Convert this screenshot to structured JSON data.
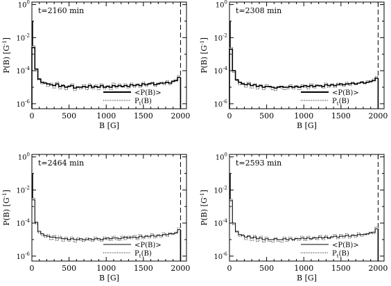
{
  "figure": {
    "layout": "2x2 grid of panels",
    "colors": {
      "axes": "#000000",
      "background": "#ffffff",
      "mean_line": "#000000",
      "pt_line": "#000000",
      "cutoff_line": "#000000"
    }
  },
  "chart_data": [
    {
      "type": "line",
      "title": "t=2160 min",
      "xlabel": "B [G]",
      "ylabel_parts": {
        "main": "P(B) [G",
        "sup": "-1",
        "end": "]"
      },
      "xlim": [
        0,
        2080
      ],
      "ylim_log10": [
        -6.3,
        0.15
      ],
      "y_scale": "log",
      "x_ticks": [
        "0",
        "500",
        "1000",
        "1500",
        "2000"
      ],
      "y_ticks": [
        {
          "base": "10",
          "exp": "0"
        },
        {
          "base": "10",
          "exp": "-2"
        },
        {
          "base": "10",
          "exp": "-4"
        },
        {
          "base": "10",
          "exp": "-6"
        }
      ],
      "y_tick_values_log10": [
        0,
        -2,
        -4,
        -6
      ],
      "legend": {
        "placement": "bottom-right",
        "entries": [
          {
            "label": "<P(B)>",
            "style": "solid"
          },
          {
            "label_main": "P",
            "label_sub": "t",
            "label_end": "(B)",
            "style": "dotted"
          }
        ]
      },
      "cutoff_x": 2000,
      "bin_width": 40,
      "series": [
        {
          "name": "<P(B)>",
          "style": "solid",
          "bold": true,
          "log10_values": [
            -2.6,
            -3.9,
            -4.5,
            -4.7,
            -4.75,
            -4.8,
            -4.85,
            -4.9,
            -4.8,
            -4.95,
            -4.9,
            -5.0,
            -4.95,
            -4.9,
            -5.05,
            -5.0,
            -5.0,
            -4.95,
            -5.0,
            -4.9,
            -5.0,
            -4.95,
            -5.0,
            -4.9,
            -5.0,
            -4.95,
            -5.0,
            -4.9,
            -4.95,
            -4.9,
            -4.95,
            -4.9,
            -4.95,
            -4.85,
            -4.9,
            -4.85,
            -4.9,
            -4.8,
            -4.85,
            -4.8,
            -4.75,
            -4.85,
            -4.8,
            -4.75,
            -4.75,
            -4.7,
            -4.75,
            -4.65,
            -4.6,
            -4.4
          ]
        },
        {
          "name": "Pt(B)",
          "style": "dotted",
          "bold": false,
          "log10_values": [
            -2.5,
            -4.0,
            -4.55,
            -4.8,
            -4.7,
            -4.95,
            -4.75,
            -5.05,
            -4.7,
            -5.1,
            -4.85,
            -5.15,
            -4.9,
            -4.8,
            -5.2,
            -4.95,
            -5.1,
            -4.85,
            -5.15,
            -4.8,
            -5.1,
            -4.85,
            -5.15,
            -4.8,
            -5.1,
            -4.9,
            -5.15,
            -4.75,
            -5.05,
            -4.8,
            -5.0,
            -4.8,
            -5.05,
            -4.75,
            -5.0,
            -4.8,
            -5.0,
            -4.7,
            -4.95,
            -4.75,
            -4.7,
            -4.95,
            -4.75,
            -4.7,
            -4.85,
            -4.6,
            -4.85,
            -4.6,
            -4.55,
            -4.3
          ]
        }
      ]
    },
    {
      "type": "line",
      "title": "t=2308 min",
      "xlabel": "B [G]",
      "ylabel_parts": {
        "main": "P(B) [G",
        "sup": "-1",
        "end": "]"
      },
      "xlim": [
        0,
        2080
      ],
      "ylim_log10": [
        -6.3,
        0.15
      ],
      "y_scale": "log",
      "x_ticks": [
        "0",
        "500",
        "1000",
        "1500",
        "2000"
      ],
      "y_ticks": [
        {
          "base": "10",
          "exp": "0"
        },
        {
          "base": "10",
          "exp": "-2"
        },
        {
          "base": "10",
          "exp": "-4"
        },
        {
          "base": "10",
          "exp": "-6"
        }
      ],
      "y_tick_values_log10": [
        0,
        -2,
        -4,
        -6
      ],
      "legend": {
        "placement": "bottom-right",
        "entries": [
          {
            "label": "<P(B)>",
            "style": "solid"
          },
          {
            "label_main": "P",
            "label_sub": "t",
            "label_end": "(B)",
            "style": "dotted"
          }
        ]
      },
      "cutoff_x": 2000,
      "bin_width": 40,
      "series": [
        {
          "name": "<P(B)>",
          "style": "solid",
          "bold": true,
          "log10_values": [
            -2.7,
            -4.0,
            -4.55,
            -4.7,
            -4.8,
            -4.85,
            -4.8,
            -4.9,
            -4.85,
            -4.95,
            -4.9,
            -5.0,
            -4.95,
            -4.95,
            -5.0,
            -5.05,
            -5.0,
            -4.95,
            -5.0,
            -5.0,
            -4.95,
            -5.0,
            -4.95,
            -5.0,
            -4.95,
            -4.9,
            -4.95,
            -4.9,
            -4.95,
            -4.9,
            -4.9,
            -4.95,
            -4.85,
            -4.9,
            -4.85,
            -4.9,
            -4.85,
            -4.8,
            -4.85,
            -4.8,
            -4.8,
            -4.75,
            -4.8,
            -4.75,
            -4.7,
            -4.75,
            -4.7,
            -4.65,
            -4.6,
            -4.45
          ]
        },
        {
          "name": "Pt(B)",
          "style": "dotted",
          "bold": false,
          "log10_values": [
            -2.6,
            -4.1,
            -4.6,
            -4.85,
            -4.75,
            -5.0,
            -4.7,
            -5.05,
            -4.8,
            -5.1,
            -4.85,
            -5.15,
            -4.85,
            -5.0,
            -5.15,
            -5.2,
            -4.95,
            -5.05,
            -5.15,
            -5.1,
            -4.85,
            -5.1,
            -4.9,
            -5.15,
            -4.85,
            -5.0,
            -5.1,
            -4.8,
            -5.05,
            -4.85,
            -4.95,
            -5.05,
            -4.75,
            -5.0,
            -4.8,
            -5.0,
            -4.75,
            -4.9,
            -4.95,
            -4.7,
            -4.9,
            -4.7,
            -4.85,
            -4.75,
            -4.65,
            -4.8,
            -4.6,
            -4.7,
            -4.5,
            -4.35
          ]
        }
      ]
    },
    {
      "type": "line",
      "title": "t=2464 min",
      "xlabel": "B [G]",
      "ylabel_parts": {
        "main": "P(B) [G",
        "sup": "-1",
        "end": "]"
      },
      "xlim": [
        0,
        2080
      ],
      "ylim_log10": [
        -6.3,
        0.15
      ],
      "y_scale": "log",
      "x_ticks": [
        "0",
        "500",
        "1000",
        "1500",
        "2000"
      ],
      "y_ticks": [
        {
          "base": "10",
          "exp": "0"
        },
        {
          "base": "10",
          "exp": "-2"
        },
        {
          "base": "10",
          "exp": "-4"
        },
        {
          "base": "10",
          "exp": "-6"
        }
      ],
      "y_tick_values_log10": [
        0,
        -2,
        -4,
        -6
      ],
      "legend": {
        "placement": "bottom-right",
        "entries": [
          {
            "label": "<P(B)>",
            "style": "solid"
          },
          {
            "label_main": "P",
            "label_sub": "t",
            "label_end": "(B)",
            "style": "dotted"
          }
        ]
      },
      "cutoff_x": 2000,
      "bin_width": 40,
      "series": [
        {
          "name": "<P(B)>",
          "style": "solid",
          "bold": false,
          "log10_values": [
            -2.6,
            -3.95,
            -4.5,
            -4.65,
            -4.75,
            -4.8,
            -4.85,
            -4.85,
            -4.9,
            -4.9,
            -4.95,
            -4.95,
            -5.0,
            -4.95,
            -5.0,
            -5.0,
            -4.95,
            -5.0,
            -5.0,
            -4.95,
            -5.0,
            -4.95,
            -4.95,
            -5.0,
            -4.95,
            -4.9,
            -4.95,
            -4.9,
            -4.9,
            -4.95,
            -4.9,
            -4.85,
            -4.9,
            -4.85,
            -4.85,
            -4.9,
            -4.8,
            -4.85,
            -4.8,
            -4.8,
            -4.75,
            -4.8,
            -4.75,
            -4.75,
            -4.7,
            -4.7,
            -4.65,
            -4.65,
            -4.6,
            -4.4
          ]
        },
        {
          "name": "Pt(B)",
          "style": "dotted",
          "bold": false,
          "log10_values": [
            -2.5,
            -4.05,
            -4.6,
            -4.75,
            -4.85,
            -4.7,
            -5.0,
            -4.75,
            -5.05,
            -4.8,
            -5.1,
            -4.85,
            -5.1,
            -4.85,
            -5.15,
            -4.9,
            -5.05,
            -5.1,
            -4.9,
            -5.05,
            -5.1,
            -4.85,
            -5.05,
            -5.1,
            -4.85,
            -5.0,
            -5.05,
            -4.8,
            -5.0,
            -5.05,
            -4.8,
            -5.0,
            -4.8,
            -4.95,
            -4.75,
            -5.0,
            -4.7,
            -4.95,
            -4.75,
            -4.9,
            -4.65,
            -4.9,
            -4.7,
            -4.85,
            -4.6,
            -4.8,
            -4.6,
            -4.7,
            -4.55,
            -4.3
          ]
        }
      ]
    },
    {
      "type": "line",
      "title": "t=2593 min",
      "xlabel": "B [G]",
      "ylabel_parts": {
        "main": "P(B) [G",
        "sup": "-1",
        "end": "]"
      },
      "xlim": [
        0,
        2080
      ],
      "ylim_log10": [
        -6.3,
        0.15
      ],
      "y_scale": "log",
      "x_ticks": [
        "0",
        "500",
        "1000",
        "1500",
        "2000"
      ],
      "y_ticks": [
        {
          "base": "10",
          "exp": "0"
        },
        {
          "base": "10",
          "exp": "-2"
        },
        {
          "base": "10",
          "exp": "-4"
        },
        {
          "base": "10",
          "exp": "-6"
        }
      ],
      "y_tick_values_log10": [
        0,
        -2,
        -4,
        -6
      ],
      "legend": {
        "placement": "bottom-right",
        "entries": [
          {
            "label": "<P(B)>",
            "style": "solid"
          },
          {
            "label_main": "P",
            "label_sub": "t",
            "label_end": "(B)",
            "style": "dotted"
          }
        ]
      },
      "cutoff_x": 2000,
      "bin_width": 40,
      "series": [
        {
          "name": "<P(B)>",
          "style": "solid",
          "bold": false,
          "log10_values": [
            -2.65,
            -4.0,
            -4.5,
            -4.7,
            -4.75,
            -4.85,
            -4.8,
            -4.9,
            -4.85,
            -4.95,
            -4.9,
            -5.0,
            -4.95,
            -5.0,
            -5.0,
            -4.95,
            -5.0,
            -5.0,
            -4.95,
            -5.0,
            -4.95,
            -5.0,
            -4.95,
            -4.95,
            -4.9,
            -4.95,
            -4.9,
            -4.95,
            -4.9,
            -4.9,
            -4.85,
            -4.9,
            -4.85,
            -4.9,
            -4.85,
            -4.8,
            -4.85,
            -4.8,
            -4.8,
            -4.75,
            -4.8,
            -4.75,
            -4.75,
            -4.7,
            -4.7,
            -4.7,
            -4.65,
            -4.6,
            -4.55,
            -4.35
          ]
        },
        {
          "name": "Pt(B)",
          "style": "dotted",
          "bold": false,
          "log10_values": [
            -2.55,
            -4.1,
            -4.55,
            -4.8,
            -4.7,
            -5.0,
            -4.75,
            -5.05,
            -4.75,
            -5.1,
            -4.8,
            -5.15,
            -4.85,
            -5.1,
            -5.15,
            -4.9,
            -5.1,
            -5.15,
            -4.85,
            -5.1,
            -4.85,
            -5.05,
            -4.9,
            -5.05,
            -4.8,
            -5.05,
            -4.8,
            -5.0,
            -4.85,
            -5.0,
            -4.75,
            -5.0,
            -4.75,
            -4.95,
            -4.8,
            -4.7,
            -4.95,
            -4.7,
            -4.9,
            -4.65,
            -4.9,
            -4.7,
            -4.85,
            -4.6,
            -4.8,
            -4.65,
            -4.7,
            -4.55,
            -4.65,
            -4.25
          ]
        }
      ]
    }
  ]
}
